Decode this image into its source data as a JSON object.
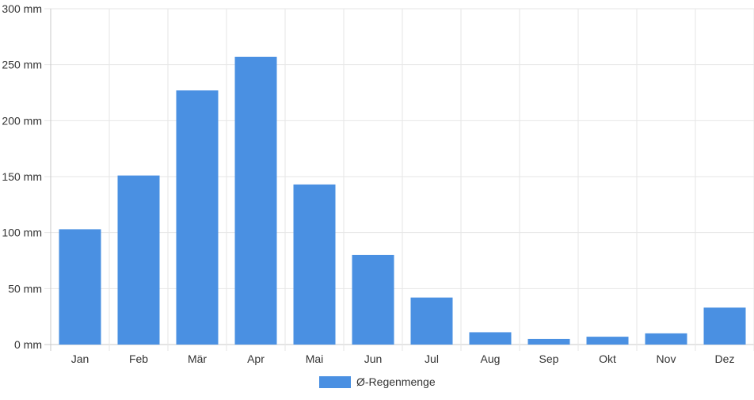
{
  "chart_data": {
    "type": "bar",
    "categories": [
      "Jan",
      "Feb",
      "Mär",
      "Apr",
      "Mai",
      "Jun",
      "Jul",
      "Aug",
      "Sep",
      "Okt",
      "Nov",
      "Dez"
    ],
    "series": [
      {
        "name": "Ø-Regenmenge",
        "values": [
          103,
          151,
          227,
          257,
          143,
          80,
          42,
          11,
          5,
          7,
          10,
          33
        ],
        "color": "#4a90e2"
      }
    ],
    "y_ticks": [
      "0 mm",
      "50 mm",
      "100 mm",
      "150 mm",
      "200 mm",
      "250 mm",
      "300 mm"
    ],
    "ylim": [
      0,
      300
    ],
    "grid": true,
    "legend_position": "bottom-center"
  }
}
